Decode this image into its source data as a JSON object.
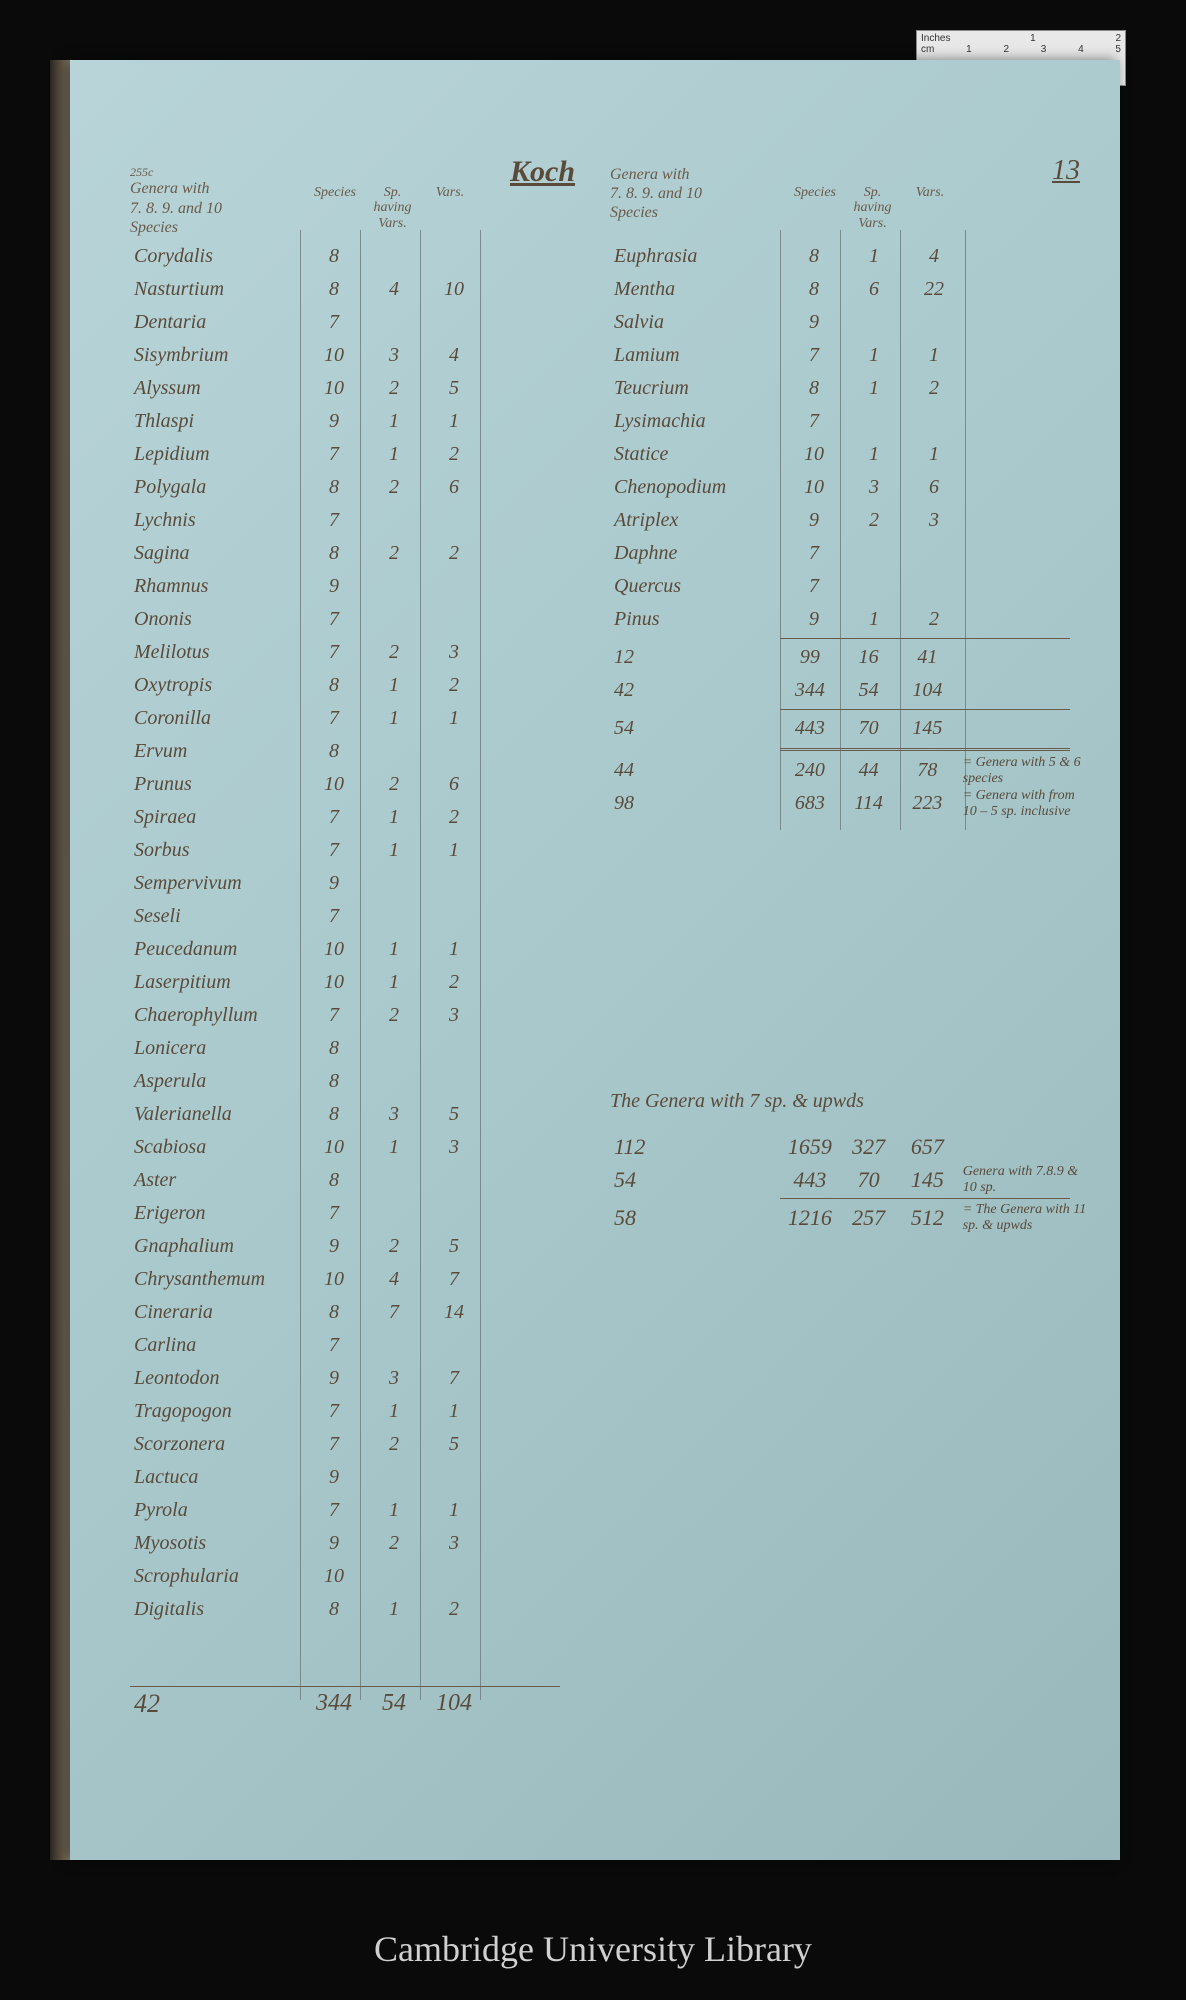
{
  "page_number": "13",
  "title": "Koch",
  "ruler": {
    "inches_label": "Inches",
    "inches_marks": [
      "",
      "1",
      "2"
    ],
    "cm_label": "cm",
    "cm_marks": [
      "1",
      "2",
      "3",
      "4",
      "5"
    ]
  },
  "header_left": {
    "super": "255c",
    "line1": "Genera with",
    "line2": "7. 8. 9. and 10",
    "line3": "Species"
  },
  "header_right": {
    "line1": "Genera with",
    "line2": "7. 8. 9. and 10",
    "line3": "Species"
  },
  "col_heads": {
    "species": "Species",
    "having_vars": "Sp.\nhaving\nVars.",
    "vars": "Vars."
  },
  "left_rows": [
    {
      "name": "Corydalis",
      "sp": "8",
      "hv": "",
      "var": ""
    },
    {
      "name": "Nasturtium",
      "sp": "8",
      "hv": "4",
      "var": "10"
    },
    {
      "name": "Dentaria",
      "sp": "7",
      "hv": "",
      "var": ""
    },
    {
      "name": "Sisymbrium",
      "sp": "10",
      "hv": "3",
      "var": "4"
    },
    {
      "name": "Alyssum",
      "sp": "10",
      "hv": "2",
      "var": "5"
    },
    {
      "name": "Thlaspi",
      "sp": "9",
      "hv": "1",
      "var": "1"
    },
    {
      "name": "Lepidium",
      "sp": "7",
      "hv": "1",
      "var": "2"
    },
    {
      "name": "Polygala",
      "sp": "8",
      "hv": "2",
      "var": "6"
    },
    {
      "name": "Lychnis",
      "sp": "7",
      "hv": "",
      "var": ""
    },
    {
      "name": "Sagina",
      "sp": "8",
      "hv": "2",
      "var": "2"
    },
    {
      "name": "Rhamnus",
      "sp": "9",
      "hv": "",
      "var": ""
    },
    {
      "name": "Ononis",
      "sp": "7",
      "hv": "",
      "var": ""
    },
    {
      "name": "Melilotus",
      "sp": "7",
      "hv": "2",
      "var": "3"
    },
    {
      "name": "Oxytropis",
      "sp": "8",
      "hv": "1",
      "var": "2"
    },
    {
      "name": "Coronilla",
      "sp": "7",
      "hv": "1",
      "var": "1"
    },
    {
      "name": "Ervum",
      "sp": "8",
      "hv": "",
      "var": ""
    },
    {
      "name": "Prunus",
      "sp": "10",
      "hv": "2",
      "var": "6"
    },
    {
      "name": "Spiraea",
      "sp": "7",
      "hv": "1",
      "var": "2"
    },
    {
      "name": "Sorbus",
      "sp": "7",
      "hv": "1",
      "var": "1"
    },
    {
      "name": "Sempervivum",
      "sp": "9",
      "hv": "",
      "var": ""
    },
    {
      "name": "Seseli",
      "sp": "7",
      "hv": "",
      "var": ""
    },
    {
      "name": "Peucedanum",
      "sp": "10",
      "hv": "1",
      "var": "1"
    },
    {
      "name": "Laserpitium",
      "sp": "10",
      "hv": "1",
      "var": "2"
    },
    {
      "name": "Chaerophyllum",
      "sp": "7",
      "hv": "2",
      "var": "3"
    },
    {
      "name": "Lonicera",
      "sp": "8",
      "hv": "",
      "var": ""
    },
    {
      "name": "Asperula",
      "sp": "8",
      "hv": "",
      "var": ""
    },
    {
      "name": "Valerianella",
      "sp": "8",
      "hv": "3",
      "var": "5"
    },
    {
      "name": "Scabiosa",
      "sp": "10",
      "hv": "1",
      "var": "3"
    },
    {
      "name": "Aster",
      "sp": "8",
      "hv": "",
      "var": ""
    },
    {
      "name": "Erigeron",
      "sp": "7",
      "hv": "",
      "var": ""
    },
    {
      "name": "Gnaphalium",
      "sp": "9",
      "hv": "2",
      "var": "5"
    },
    {
      "name": "Chrysanthemum",
      "sp": "10",
      "hv": "4",
      "var": "7"
    },
    {
      "name": "Cineraria",
      "sp": "8",
      "hv": "7",
      "var": "14"
    },
    {
      "name": "Carlina",
      "sp": "7",
      "hv": "",
      "var": ""
    },
    {
      "name": "Leontodon",
      "sp": "9",
      "hv": "3",
      "var": "7"
    },
    {
      "name": "Tragopogon",
      "sp": "7",
      "hv": "1",
      "var": "1"
    },
    {
      "name": "Scorzonera",
      "sp": "7",
      "hv": "2",
      "var": "5"
    },
    {
      "name": "Lactuca",
      "sp": "9",
      "hv": "",
      "var": ""
    },
    {
      "name": "Pyrola",
      "sp": "7",
      "hv": "1",
      "var": "1"
    },
    {
      "name": "Myosotis",
      "sp": "9",
      "hv": "2",
      "var": "3"
    },
    {
      "name": "Scrophularia",
      "sp": "10",
      "hv": "",
      "var": ""
    },
    {
      "name": "Digitalis",
      "sp": "8",
      "hv": "1",
      "var": "2"
    }
  ],
  "left_totals": {
    "count": "42",
    "sp": "344",
    "hv": "54",
    "var": "104"
  },
  "right_rows": [
    {
      "name": "Euphrasia",
      "sp": "8",
      "hv": "1",
      "var": "4"
    },
    {
      "name": "Mentha",
      "sp": "8",
      "hv": "6",
      "var": "22"
    },
    {
      "name": "Salvia",
      "sp": "9",
      "hv": "",
      "var": ""
    },
    {
      "name": "Lamium",
      "sp": "7",
      "hv": "1",
      "var": "1"
    },
    {
      "name": "Teucrium",
      "sp": "8",
      "hv": "1",
      "var": "2"
    },
    {
      "name": "Lysimachia",
      "sp": "7",
      "hv": "",
      "var": ""
    },
    {
      "name": "Statice",
      "sp": "10",
      "hv": "1",
      "var": "1"
    },
    {
      "name": "Chenopodium",
      "sp": "10",
      "hv": "3",
      "var": "6"
    },
    {
      "name": "Atriplex",
      "sp": "9",
      "hv": "2",
      "var": "3"
    },
    {
      "name": "Daphne",
      "sp": "7",
      "hv": "",
      "var": ""
    },
    {
      "name": "Quercus",
      "sp": "7",
      "hv": "",
      "var": ""
    },
    {
      "name": "Pinus",
      "sp": "9",
      "hv": "1",
      "var": "2"
    }
  ],
  "right_subtotals": [
    {
      "name": "12",
      "sp": "99",
      "hv": "16",
      "var": "41",
      "note": ""
    },
    {
      "name": "42",
      "sp": "344",
      "hv": "54",
      "var": "104",
      "note": ""
    }
  ],
  "right_total": {
    "name": "54",
    "sp": "443",
    "hv": "70",
    "var": "145",
    "note": ""
  },
  "right_extra": [
    {
      "name": "44",
      "sp": "240",
      "hv": "44",
      "var": "78",
      "note": "= Genera with 5 & 6 species"
    },
    {
      "name": "98",
      "sp": "683",
      "hv": "114",
      "var": "223",
      "note": "= Genera with from 10 – 5 sp. inclusive"
    }
  ],
  "section2_title": "The Genera with 7 sp. & upwds",
  "section2_rows": [
    {
      "name": "112",
      "sp": "1659",
      "hv": "327",
      "var": "657",
      "note": ""
    },
    {
      "name": "54",
      "sp": "443",
      "hv": "70",
      "var": "145",
      "note": "Genera with 7.8.9 & 10 sp."
    }
  ],
  "section2_total": {
    "name": "58",
    "sp": "1216",
    "hv": "257",
    "var": "512",
    "note": "= The Genera with 11 sp. & upwds"
  },
  "footer": "Cambridge University Library",
  "colors": {
    "page_bg": "#a8c8cc",
    "ink": "#5a4a3a",
    "frame": "#0a0a0a"
  }
}
